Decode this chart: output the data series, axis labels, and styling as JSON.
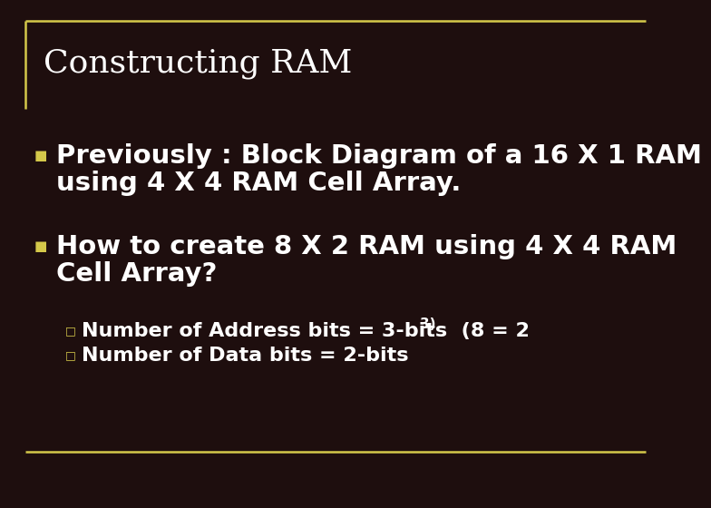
{
  "background_color": "#1e0e0e",
  "border_color": "#d4c84a",
  "title": "Constructing RAM",
  "title_color": "#ffffff",
  "title_fontsize": 26,
  "bullet1_line1": "Previously : Block Diagram of a 16 X 1 RAM",
  "bullet1_line2": "using 4 X 4 RAM Cell Array.",
  "bullet2_line1": "How to create 8 X 2 RAM using 4 X 4 RAM",
  "bullet2_line2": "Cell Array?",
  "sub_bullet1_prefix": "Number of Address bits = 3-bits  (8 = 2",
  "sub_bullet1_super": "3)",
  "sub_bullet2": "Number of Data bits = 2-bits",
  "text_color": "#ffffff",
  "bullet_marker_color": "#d4c84a",
  "bullet_fontsize": 21,
  "sub_bullet_fontsize": 16
}
